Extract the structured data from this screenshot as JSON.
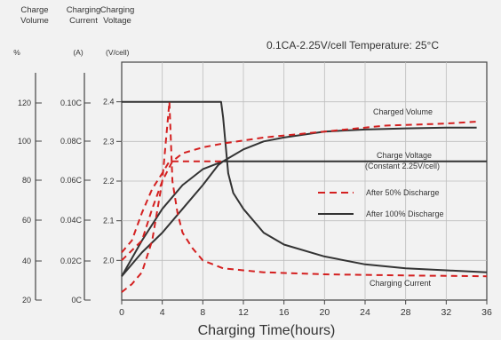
{
  "chart_data": {
    "type": "line",
    "x_axis": {
      "label": "Charging Time(hours)",
      "min": 0,
      "max": 36,
      "ticks": [
        0,
        4,
        8,
        12,
        16,
        20,
        24,
        28,
        32,
        36
      ]
    },
    "left_axes": [
      {
        "title_lines": [
          "Charge",
          "Volume"
        ],
        "unit": "%",
        "tick_labels": [
          "120",
          "100",
          "80",
          "60",
          "40",
          "20"
        ]
      },
      {
        "title_lines": [
          "Charging",
          "Current"
        ],
        "unit": "(A)",
        "tick_labels": [
          "0.10C",
          "0.08C",
          "0.06C",
          "0.04C",
          "0.02C",
          "0C"
        ]
      },
      {
        "title_lines": [
          "Charging",
          "Voltage"
        ],
        "unit": "(V/cell)",
        "tick_labels": [
          "2.4",
          "2.3",
          "2.2",
          "2.1",
          "2.0"
        ]
      }
    ],
    "y_primary": {
      "min": 1.9,
      "max": 2.5,
      "ticks": [
        2.4,
        2.3,
        2.2,
        2.1,
        2.0
      ]
    },
    "header_text": "0.1CA-2.25V/cell   Temperature: 25°C",
    "legend": [
      {
        "label": "After 50% Discharge",
        "style": "dashed",
        "color": "#d42020"
      },
      {
        "label": "After 100% Discharge",
        "style": "solid",
        "color": "#333333"
      }
    ],
    "annotations": {
      "charged_volume": "Charged Volume",
      "charge_voltage_1": "Charge Voltage",
      "charge_voltage_2": "(Constant 2.25V/cell)",
      "charging_current": "Charging Current"
    },
    "series": [
      {
        "group": "After 100% Discharge",
        "quantity": "Charge Volume",
        "style": "solid",
        "color": "#333333",
        "points": [
          [
            0,
            1.96
          ],
          [
            2,
            2.02
          ],
          [
            4,
            2.07
          ],
          [
            6,
            2.13
          ],
          [
            8,
            2.19
          ],
          [
            9.5,
            2.24
          ],
          [
            10,
            2.25
          ],
          [
            12,
            2.28
          ],
          [
            14,
            2.3
          ],
          [
            16,
            2.31
          ],
          [
            20,
            2.325
          ],
          [
            24,
            2.33
          ],
          [
            28,
            2.333
          ],
          [
            32,
            2.335
          ],
          [
            35,
            2.335
          ]
        ]
      },
      {
        "group": "After 100% Discharge",
        "quantity": "Charge Voltage",
        "style": "solid",
        "color": "#333333",
        "points": [
          [
            0,
            1.96
          ],
          [
            2,
            2.05
          ],
          [
            4,
            2.13
          ],
          [
            6,
            2.19
          ],
          [
            8,
            2.23
          ],
          [
            10,
            2.25
          ],
          [
            12,
            2.25
          ],
          [
            20,
            2.25
          ],
          [
            28,
            2.25
          ],
          [
            36,
            2.25
          ]
        ]
      },
      {
        "group": "After 100% Discharge",
        "quantity": "Charging Current",
        "style": "solid",
        "color": "#333333",
        "points": [
          [
            0,
            2.4
          ],
          [
            9.8,
            2.4
          ],
          [
            10,
            2.36
          ],
          [
            10.5,
            2.22
          ],
          [
            11,
            2.17
          ],
          [
            12,
            2.13
          ],
          [
            14,
            2.07
          ],
          [
            16,
            2.04
          ],
          [
            20,
            2.01
          ],
          [
            24,
            1.99
          ],
          [
            28,
            1.98
          ],
          [
            32,
            1.975
          ],
          [
            36,
            1.97
          ]
        ]
      },
      {
        "group": "After 50% Discharge",
        "quantity": "Charge Volume",
        "style": "dashed",
        "color": "#d42020",
        "points": [
          [
            0,
            2.0
          ],
          [
            2,
            2.05
          ],
          [
            3,
            2.13
          ],
          [
            4,
            2.2
          ],
          [
            5,
            2.25
          ],
          [
            6,
            2.27
          ],
          [
            8,
            2.285
          ],
          [
            10,
            2.295
          ],
          [
            14,
            2.31
          ],
          [
            20,
            2.325
          ],
          [
            26,
            2.34
          ],
          [
            32,
            2.345
          ],
          [
            35,
            2.35
          ]
        ]
      },
      {
        "group": "After 50% Discharge",
        "quantity": "Charge Voltage",
        "style": "dashed",
        "color": "#d42020",
        "points": [
          [
            0,
            2.02
          ],
          [
            1,
            2.05
          ],
          [
            2,
            2.12
          ],
          [
            3,
            2.18
          ],
          [
            4,
            2.22
          ],
          [
            4.7,
            2.25
          ],
          [
            6,
            2.25
          ],
          [
            10,
            2.25
          ]
        ]
      },
      {
        "group": "After 50% Discharge",
        "quantity": "Charging Current",
        "style": "dashed",
        "color": "#d42020",
        "points": [
          [
            0,
            1.92
          ],
          [
            1,
            1.94
          ],
          [
            2,
            1.97
          ],
          [
            3,
            2.05
          ],
          [
            4,
            2.2
          ],
          [
            4.7,
            2.4
          ],
          [
            5,
            2.2
          ],
          [
            5.5,
            2.12
          ],
          [
            6,
            2.07
          ],
          [
            7,
            2.03
          ],
          [
            8,
            2.0
          ],
          [
            10,
            1.98
          ],
          [
            14,
            1.97
          ],
          [
            20,
            1.965
          ],
          [
            28,
            1.962
          ],
          [
            36,
            1.96
          ]
        ]
      }
    ]
  }
}
